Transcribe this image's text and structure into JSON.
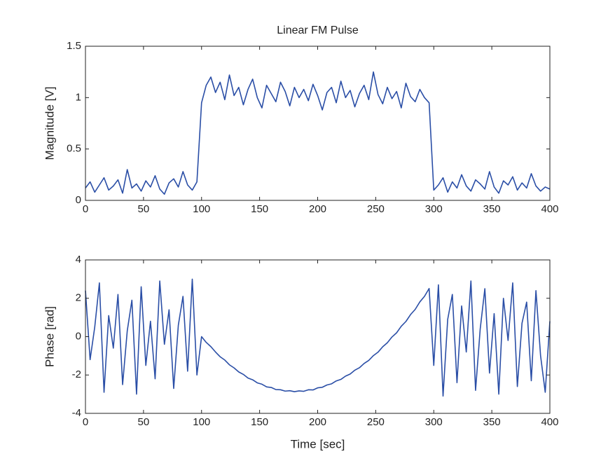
{
  "chart_data": [
    {
      "type": "line",
      "title": "Linear FM Pulse",
      "ylabel": "Magnitude [V]",
      "color": "#2a4ea6",
      "x": [
        0,
        4,
        8,
        12,
        16,
        20,
        24,
        28,
        32,
        36,
        40,
        44,
        48,
        52,
        56,
        60,
        64,
        68,
        72,
        76,
        80,
        84,
        88,
        92,
        96,
        100,
        104,
        108,
        112,
        116,
        120,
        124,
        128,
        132,
        136,
        140,
        144,
        148,
        152,
        156,
        160,
        164,
        168,
        172,
        176,
        180,
        184,
        188,
        192,
        196,
        200,
        204,
        208,
        212,
        216,
        220,
        224,
        228,
        232,
        236,
        240,
        244,
        248,
        252,
        256,
        260,
        264,
        268,
        272,
        276,
        280,
        284,
        288,
        292,
        296,
        300,
        304,
        308,
        312,
        316,
        320,
        324,
        328,
        332,
        336,
        340,
        344,
        348,
        352,
        356,
        360,
        364,
        368,
        372,
        376,
        380,
        384,
        388,
        392,
        396,
        400
      ],
      "values": [
        0.12,
        0.18,
        0.08,
        0.15,
        0.22,
        0.1,
        0.14,
        0.2,
        0.07,
        0.3,
        0.12,
        0.16,
        0.09,
        0.19,
        0.13,
        0.24,
        0.11,
        0.06,
        0.17,
        0.21,
        0.13,
        0.28,
        0.15,
        0.1,
        0.18,
        0.95,
        1.12,
        1.2,
        1.05,
        1.15,
        0.98,
        1.22,
        1.02,
        1.1,
        0.93,
        1.08,
        1.18,
        1.0,
        0.9,
        1.12,
        1.04,
        0.96,
        1.15,
        1.06,
        0.92,
        1.1,
        1.0,
        1.08,
        0.97,
        1.13,
        1.02,
        0.88,
        1.05,
        1.1,
        0.95,
        1.16,
        1.0,
        1.07,
        0.91,
        1.04,
        1.12,
        0.98,
        1.25,
        1.03,
        0.94,
        1.1,
        0.99,
        1.06,
        0.9,
        1.14,
        1.01,
        0.96,
        1.08,
        1.0,
        0.95,
        0.1,
        0.15,
        0.22,
        0.08,
        0.18,
        0.12,
        0.25,
        0.14,
        0.09,
        0.2,
        0.16,
        0.11,
        0.28,
        0.13,
        0.07,
        0.19,
        0.15,
        0.23,
        0.1,
        0.17,
        0.12,
        0.26,
        0.14,
        0.09,
        0.13,
        0.11
      ],
      "xlim": [
        0,
        400
      ],
      "xticks": [
        0,
        50,
        100,
        150,
        200,
        250,
        300,
        350,
        400
      ],
      "ylim": [
        0,
        1.5
      ],
      "yticks": [
        0,
        0.5,
        1,
        1.5
      ]
    },
    {
      "type": "line",
      "ylabel": "Phase [rad]",
      "xlabel": "Time [sec]",
      "color": "#2a4ea6",
      "x": [
        0,
        4,
        8,
        12,
        16,
        20,
        24,
        28,
        32,
        36,
        40,
        44,
        48,
        52,
        56,
        60,
        64,
        68,
        72,
        76,
        80,
        84,
        88,
        92,
        96,
        100,
        104,
        108,
        112,
        116,
        120,
        124,
        128,
        132,
        136,
        140,
        144,
        148,
        152,
        156,
        160,
        164,
        168,
        172,
        176,
        180,
        184,
        188,
        192,
        196,
        200,
        204,
        208,
        212,
        216,
        220,
        224,
        228,
        232,
        236,
        240,
        244,
        248,
        252,
        256,
        260,
        264,
        268,
        272,
        276,
        280,
        284,
        288,
        292,
        296,
        300,
        304,
        308,
        312,
        316,
        320,
        324,
        328,
        332,
        336,
        340,
        344,
        348,
        352,
        356,
        360,
        364,
        368,
        372,
        376,
        380,
        384,
        388,
        392,
        396,
        400
      ],
      "values": [
        2.4,
        -1.2,
        0.5,
        2.8,
        -2.9,
        1.1,
        -0.6,
        2.2,
        -2.5,
        0.3,
        1.9,
        -3.0,
        2.6,
        -1.5,
        0.8,
        -2.2,
        2.9,
        -0.4,
        1.4,
        -2.7,
        0.6,
        2.1,
        -1.8,
        3.0,
        -2.0,
        0.0,
        -0.3,
        -0.52,
        -0.8,
        -1.05,
        -1.22,
        -1.47,
        -1.63,
        -1.84,
        -1.97,
        -2.16,
        -2.25,
        -2.41,
        -2.48,
        -2.62,
        -2.65,
        -2.76,
        -2.77,
        -2.84,
        -2.82,
        -2.87,
        -2.83,
        -2.85,
        -2.77,
        -2.78,
        -2.67,
        -2.64,
        -2.52,
        -2.46,
        -2.31,
        -2.23,
        -2.06,
        -1.95,
        -1.75,
        -1.62,
        -1.4,
        -1.24,
        -0.99,
        -0.81,
        -0.53,
        -0.32,
        -0.02,
        0.2,
        0.54,
        0.79,
        1.15,
        1.42,
        1.81,
        2.1,
        2.51,
        -1.5,
        2.7,
        -3.1,
        0.9,
        2.2,
        -2.4,
        1.6,
        -0.8,
        2.9,
        -2.8,
        0.4,
        2.5,
        -1.9,
        1.2,
        -3.0,
        2.0,
        -0.2,
        2.8,
        -2.6,
        0.7,
        1.8,
        -2.3,
        2.4,
        -1.0,
        -2.9,
        0.8
      ],
      "xlim": [
        0,
        400
      ],
      "xticks": [
        0,
        50,
        100,
        150,
        200,
        250,
        300,
        350,
        400
      ],
      "ylim": [
        -4,
        4
      ],
      "yticks": [
        -4,
        -2,
        0,
        2,
        4
      ]
    }
  ]
}
